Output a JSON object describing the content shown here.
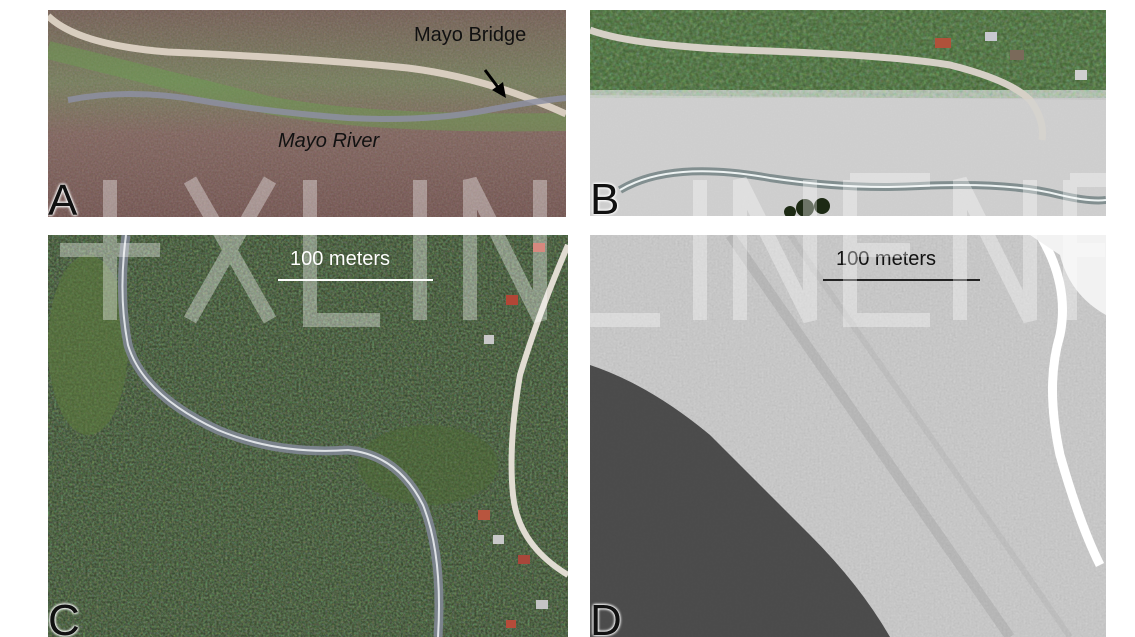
{
  "panels": {
    "a": {
      "letter": "A",
      "bridge_label": "Mayo Bridge",
      "river_label": "Mayo River"
    },
    "b": {
      "letter": "B"
    },
    "c": {
      "letter": "C",
      "scale_label": "100 meters"
    },
    "d": {
      "letter": "D",
      "scale_label": "100 meters"
    }
  },
  "colors": {
    "vegetation_reddish": "#7a5a52",
    "vegetation_green": "#4d6b3a",
    "road": "#cfc3b6",
    "river_gray": "#8a8c96",
    "gravel": "#c9c9c9",
    "forest_dark": "#2c3a22",
    "aerial_bw_light": "#d8d8d8",
    "aerial_bw_dark": "#3b3b3b"
  },
  "icons": [
    "arrow-icon",
    "watermark-logo"
  ]
}
